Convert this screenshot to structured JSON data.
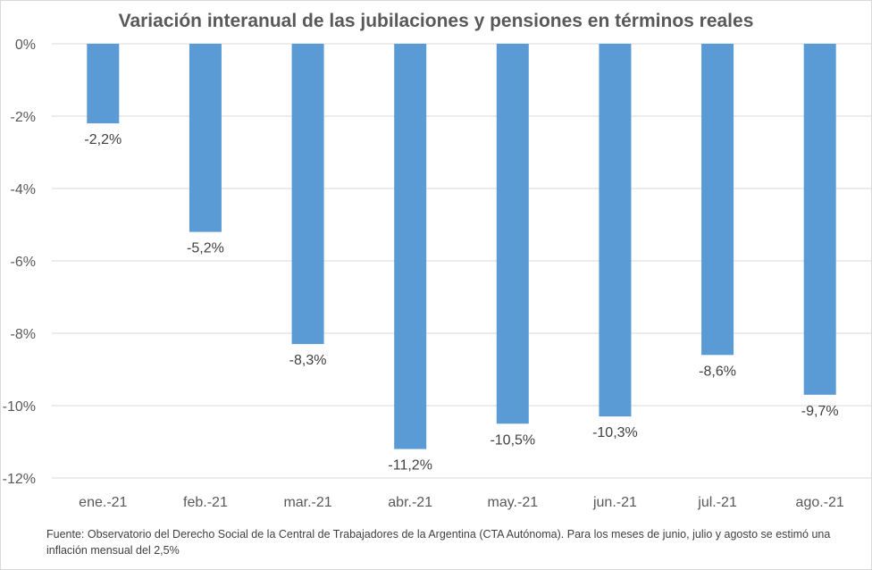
{
  "chart_data": {
    "type": "bar",
    "title": "Variación interanual de las jubilaciones y pensiones en términos reales",
    "categories": [
      "ene.-21",
      "feb.-21",
      "mar.-21",
      "abr.-21",
      "may.-21",
      "jun.-21",
      "jul.-21",
      "ago.-21"
    ],
    "values": [
      -2.2,
      -5.2,
      -8.3,
      -11.2,
      -10.5,
      -10.3,
      -8.6,
      -9.7
    ],
    "data_labels": [
      "-2,2%",
      "-5,2%",
      "-8,3%",
      "-11,2%",
      "-10,5%",
      "-10,3%",
      "-8,6%",
      "-9,7%"
    ],
    "y_ticks": [
      0,
      -2,
      -4,
      -6,
      -8,
      -10,
      -12
    ],
    "y_tick_labels": [
      "0%",
      "-2%",
      "-4%",
      "-6%",
      "-8%",
      "-10%",
      "-12%"
    ],
    "ylim": [
      -12,
      0
    ],
    "xlabel": "",
    "ylabel": "",
    "grid": true,
    "series_color": "#5b9bd5",
    "gridline_color": "#d9d9d9"
  },
  "footnote": "Fuente: Observatorio del Derecho Social de la Central de Trabajadores de la Argentina (CTA Autónoma). Para los meses de junio, julio y agosto se estimó una inflación mensual del 2,5%"
}
